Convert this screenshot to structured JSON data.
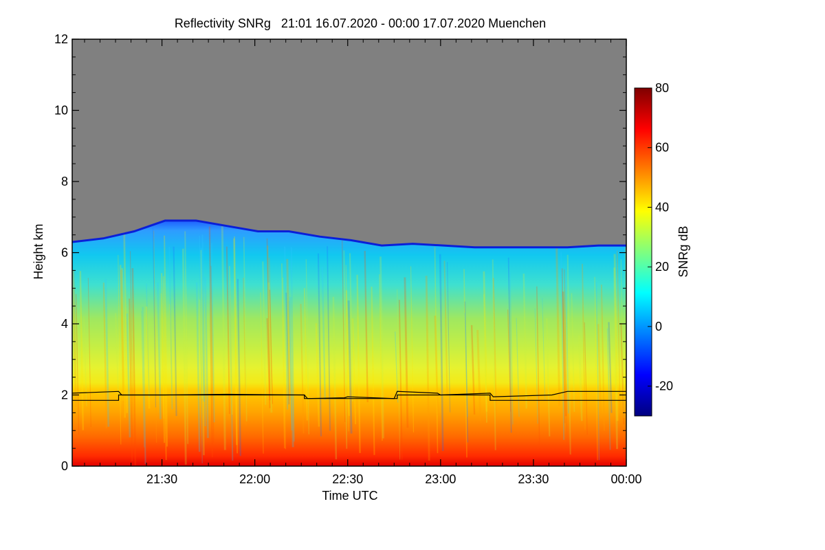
{
  "chart_data": {
    "type": "heatmap",
    "title": "Reflectivity SNRg   21:01 16.07.2020 - 00:00 17.07.2020 Muenchen",
    "xlabel": "Time UTC",
    "ylabel": "Height km",
    "x_ticks": [
      "21:30",
      "22:00",
      "22:30",
      "23:00",
      "23:30",
      "00:00"
    ],
    "x_tick_minutes": [
      29,
      59,
      89,
      119,
      149,
      179
    ],
    "x_minor_tick_minutes": [
      4,
      9,
      14,
      19,
      24,
      34,
      39,
      44,
      49,
      54,
      64,
      69,
      74,
      79,
      84,
      94,
      99,
      104,
      109,
      114,
      124,
      129,
      134,
      139,
      144,
      154,
      159,
      164,
      169,
      174
    ],
    "xlim_minutes": [
      0,
      179
    ],
    "y_ticks": [
      0,
      2,
      4,
      6,
      8,
      10,
      12
    ],
    "y_minor_ticks": [
      0.5,
      1,
      1.5,
      2.5,
      3,
      3.5,
      4.5,
      5,
      5.5,
      6.5,
      7,
      7.5,
      8.5,
      9,
      9.5,
      10.5,
      11,
      11.5
    ],
    "ylim": [
      0,
      12
    ],
    "colorbar": {
      "label": "SNRg dB",
      "ticks": [
        80,
        60,
        40,
        20,
        0,
        -20
      ],
      "range": [
        -30,
        80
      ],
      "colormap": [
        "#00007f",
        "#0000ff",
        "#007fff",
        "#00ffff",
        "#7fff7f",
        "#ffff00",
        "#ff7f00",
        "#ff0000",
        "#7f0000"
      ]
    },
    "background_color": "#808080",
    "cloud_top_km": [
      [
        0,
        6.3
      ],
      [
        10,
        6.4
      ],
      [
        20,
        6.6
      ],
      [
        30,
        6.9
      ],
      [
        40,
        6.9
      ],
      [
        50,
        6.75
      ],
      [
        60,
        6.6
      ],
      [
        70,
        6.6
      ],
      [
        80,
        6.45
      ],
      [
        90,
        6.35
      ],
      [
        100,
        6.2
      ],
      [
        110,
        6.25
      ],
      [
        120,
        6.2
      ],
      [
        130,
        6.15
      ],
      [
        140,
        6.15
      ],
      [
        150,
        6.15
      ],
      [
        160,
        6.15
      ],
      [
        170,
        6.2
      ],
      [
        179,
        6.2
      ]
    ],
    "series": [
      {
        "type": "line",
        "color": "#000000",
        "x_minutes": [
          0,
          15,
          16,
          30,
          50,
          75,
          76,
          88,
          89,
          104,
          105,
          118,
          119,
          135,
          136,
          155,
          160,
          179
        ],
        "y_km": [
          2.05,
          2.1,
          2.0,
          2.0,
          2.02,
          2.0,
          1.9,
          1.92,
          1.95,
          1.9,
          2.1,
          2.05,
          2.0,
          2.05,
          1.95,
          2.0,
          2.1,
          2.1
        ]
      },
      {
        "type": "line",
        "color": "#000000",
        "x_minutes": [
          0,
          15,
          15,
          75,
          75,
          105,
          105,
          135,
          135,
          179
        ],
        "y_km": [
          1.85,
          1.85,
          2.0,
          2.0,
          1.9,
          1.9,
          2.0,
          2.0,
          1.85,
          1.85
        ]
      }
    ]
  }
}
